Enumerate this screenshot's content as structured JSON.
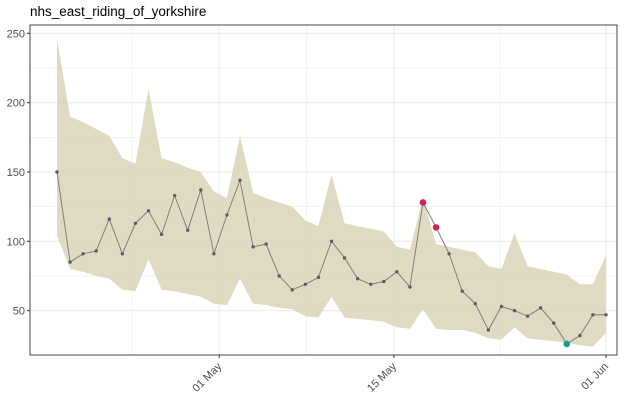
{
  "chart_data": {
    "type": "line",
    "title": "nhs_east_riding_of_yorkshire",
    "xlabel": "",
    "ylabel": "",
    "x_start": "2020-04-18",
    "x_end": "2020-06-01",
    "x_ticks": [
      {
        "date": "2020-05-01",
        "label": "01 May"
      },
      {
        "date": "2020-05-15",
        "label": "15 May"
      },
      {
        "date": "2020-06-01",
        "label": "01 Jun"
      }
    ],
    "ylim": [
      18,
      256
    ],
    "y_ticks": [
      50,
      100,
      150,
      200,
      250
    ],
    "grid": true,
    "legend": "none",
    "colors": {
      "band": "#d9d5b7",
      "line": "#7f7f7f",
      "point": "#5e5e5e",
      "high": "#d1244f",
      "low": "#1a9c8a",
      "grid": "#ebebeb",
      "panel_border": "#333333"
    },
    "series": [
      {
        "values": [
          150,
          85,
          91,
          93,
          116,
          91,
          113,
          122,
          105,
          133,
          108,
          137,
          91,
          119,
          144,
          96,
          98,
          75,
          65,
          69,
          74,
          100,
          88,
          73,
          69,
          71,
          78,
          67,
          128,
          110,
          91,
          64,
          55,
          36,
          53,
          50,
          46,
          52,
          41,
          26,
          32,
          47,
          47
        ]
      }
    ],
    "band": {
      "upper": [
        246,
        190,
        186,
        181,
        176,
        160,
        156,
        210,
        160,
        157,
        153,
        150,
        136,
        131,
        176,
        135,
        131,
        128,
        125,
        115,
        111,
        148,
        113,
        111,
        109,
        107,
        96,
        94,
        131,
        98,
        96,
        94,
        92,
        82,
        80,
        106,
        82,
        80,
        78,
        76,
        69,
        69,
        90
      ],
      "lower": [
        104,
        80,
        78,
        75,
        73,
        65,
        64,
        87,
        65,
        64,
        62,
        60,
        55,
        54,
        73,
        55,
        54,
        52,
        51,
        46,
        45,
        60,
        45,
        44,
        43,
        42,
        38,
        37,
        51,
        37,
        36,
        36,
        34,
        30,
        29,
        38,
        30,
        29,
        28,
        27,
        25,
        24,
        34
      ]
    },
    "highlights": [
      {
        "index": 28,
        "kind": "high"
      },
      {
        "index": 29,
        "kind": "high"
      },
      {
        "index": 39,
        "kind": "low"
      }
    ]
  }
}
